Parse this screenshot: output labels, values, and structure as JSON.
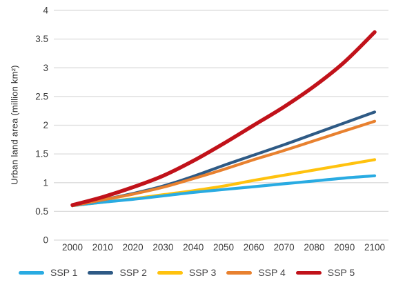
{
  "chart_data": {
    "type": "line",
    "title": "",
    "xlabel": "",
    "ylabel": "Urban land area (million km²)",
    "x": [
      2000,
      2010,
      2020,
      2030,
      2040,
      2050,
      2060,
      2070,
      2080,
      2090,
      2100
    ],
    "x_tick_labels": [
      "2000",
      "2010",
      "2020",
      "2030",
      "2040",
      "2050",
      "2060",
      "2070",
      "2080",
      "2090",
      "2100"
    ],
    "ylim": [
      0,
      4
    ],
    "ytick_values": [
      0,
      0.5,
      1,
      1.5,
      2,
      2.5,
      3,
      3.5,
      4
    ],
    "ytick_labels": [
      "0",
      "0.5",
      "1",
      "1.5",
      "2",
      "2.5",
      "3",
      "3.5",
      "4"
    ],
    "grid": "horizontal",
    "legend_position": "bottom",
    "series": [
      {
        "name": "SSP 1",
        "color": "#29ABE2",
        "values": [
          0.6,
          0.66,
          0.71,
          0.77,
          0.83,
          0.88,
          0.93,
          0.98,
          1.03,
          1.08,
          1.12
        ]
      },
      {
        "name": "SSP 2",
        "color": "#2E5A85",
        "values": [
          0.6,
          0.7,
          0.81,
          0.94,
          1.11,
          1.3,
          1.48,
          1.66,
          1.85,
          2.04,
          2.23
        ]
      },
      {
        "name": "SSP 3",
        "color": "#FFC20E",
        "values": [
          0.6,
          0.66,
          0.72,
          0.79,
          0.86,
          0.94,
          1.04,
          1.13,
          1.22,
          1.31,
          1.4
        ]
      },
      {
        "name": "SSP 4",
        "color": "#E8812F",
        "values": [
          0.6,
          0.7,
          0.8,
          0.92,
          1.07,
          1.23,
          1.4,
          1.56,
          1.73,
          1.9,
          2.07
        ]
      },
      {
        "name": "SSP 5",
        "color": "#C1121A",
        "values": [
          0.61,
          0.75,
          0.92,
          1.12,
          1.38,
          1.68,
          2.0,
          2.32,
          2.68,
          3.1,
          3.62
        ]
      }
    ]
  },
  "styles": {
    "grid_color": "#DBDBDB",
    "tick_text_color": "#3A3A3A",
    "legend_text_color": "#414042",
    "background_color": "#FFFFFF"
  }
}
